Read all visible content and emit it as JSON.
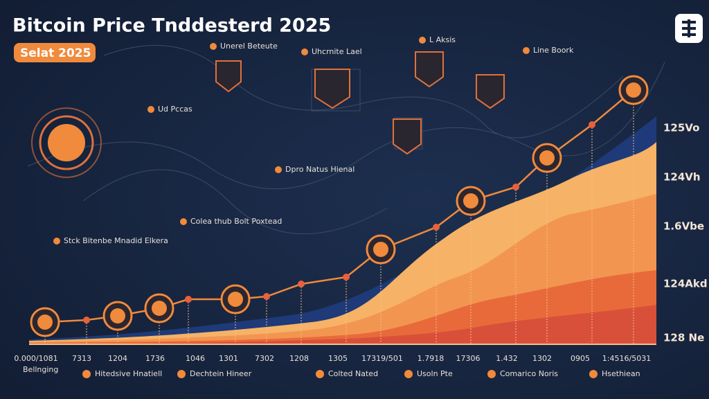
{
  "header": {
    "title": "Bitcoin Price Tnddesterd 2025",
    "badge": "Selat 2025"
  },
  "annotations": [
    "Unerel Beteute",
    "Uhcrnite Lael",
    "L Aksis",
    "Line Boork",
    "Ud Pccas",
    "Dpro Natus Hienal",
    "Colea thub Bolt Poxtead",
    "Stck Bitenbe Mnadid Elkera"
  ],
  "y_labels": [
    "125Vo",
    "124Vh",
    "1.6Vbe",
    "124Akd",
    "128 Ne"
  ],
  "x_labels": [
    "0.000/1081",
    "7313",
    "1204",
    "1736",
    "1046",
    "1301",
    "7302",
    "1208",
    "1305",
    "17319/501",
    "1.7918",
    "17306",
    "1.432",
    "1302",
    "0905",
    "1:4516/5031"
  ],
  "x_caption": "Bellnging",
  "legend": [
    "Hitedsive Hnatiell",
    "Dechtein Hineer",
    "Colted Nated",
    "Usoln Pte",
    "Comarico Noris",
    "Hsethiean"
  ]
}
